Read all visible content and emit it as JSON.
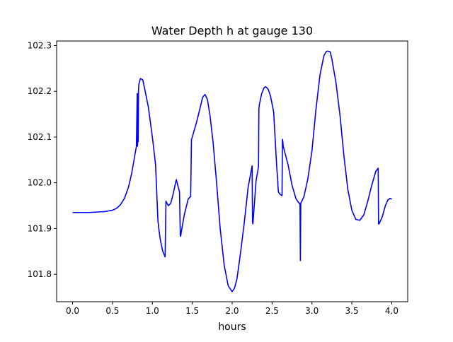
{
  "chart_data": {
    "type": "line",
    "title": "Water Depth h at gauge 130",
    "xlabel": "hours",
    "ylabel": "",
    "xlim": [
      -0.2,
      4.2
    ],
    "ylim": [
      101.74,
      102.31
    ],
    "xticks": [
      0.0,
      0.5,
      1.0,
      1.5,
      2.0,
      2.5,
      3.0,
      3.5,
      4.0
    ],
    "xtick_labels": [
      "0.0",
      "0.5",
      "1.0",
      "1.5",
      "2.0",
      "2.5",
      "3.0",
      "3.5",
      "4.0"
    ],
    "yticks": [
      101.8,
      101.9,
      102.0,
      102.1,
      102.2,
      102.3
    ],
    "ytick_labels": [
      "101.8",
      "101.9",
      "102.0",
      "102.1",
      "102.2",
      "102.3"
    ],
    "grid": false,
    "series": [
      {
        "color": "#0000ff",
        "x": [
          0.0,
          0.1,
          0.2,
          0.3,
          0.4,
          0.5,
          0.55,
          0.6,
          0.65,
          0.7,
          0.74,
          0.78,
          0.8,
          0.81,
          0.813,
          0.815,
          0.82,
          0.823,
          0.826,
          0.83,
          0.85,
          0.88,
          0.91,
          0.95,
          1.0,
          1.04,
          1.07,
          1.075,
          1.08,
          1.1,
          1.13,
          1.16,
          1.17,
          1.175,
          1.2,
          1.23,
          1.26,
          1.3,
          1.34,
          1.35,
          1.355,
          1.36,
          1.4,
          1.45,
          1.48,
          1.49,
          1.495,
          1.5,
          1.55,
          1.6,
          1.63,
          1.66,
          1.69,
          1.72,
          1.76,
          1.8,
          1.85,
          1.9,
          1.95,
          2.0,
          2.03,
          2.06,
          2.1,
          2.15,
          2.2,
          2.25,
          2.255,
          2.26,
          2.3,
          2.33,
          2.335,
          2.34,
          2.37,
          2.4,
          2.42,
          2.45,
          2.48,
          2.52,
          2.56,
          2.57,
          2.575,
          2.58,
          2.6,
          2.625,
          2.63,
          2.635,
          2.64,
          2.7,
          2.75,
          2.8,
          2.84,
          2.85,
          2.855,
          2.86,
          2.9,
          2.95,
          3.0,
          3.05,
          3.1,
          3.15,
          3.18,
          3.2,
          3.23,
          3.25,
          3.3,
          3.35,
          3.4,
          3.45,
          3.5,
          3.55,
          3.6,
          3.65,
          3.7,
          3.75,
          3.8,
          3.83,
          3.835,
          3.84,
          3.88,
          3.92,
          3.95,
          3.98,
          4.0
        ],
        "y": [
          101.935,
          101.935,
          101.935,
          101.936,
          101.937,
          101.94,
          101.944,
          101.952,
          101.966,
          101.99,
          102.02,
          102.06,
          102.08,
          102.195,
          102.08,
          102.085,
          102.195,
          102.09,
          102.2,
          102.215,
          102.228,
          102.225,
          102.2,
          102.165,
          102.1,
          102.04,
          101.916,
          101.91,
          101.9,
          101.875,
          101.85,
          101.838,
          101.96,
          101.958,
          101.95,
          101.955,
          101.975,
          102.007,
          101.98,
          101.885,
          101.883,
          101.89,
          101.93,
          101.965,
          101.97,
          102.095,
          102.097,
          102.1,
          102.13,
          102.165,
          102.187,
          102.193,
          102.182,
          102.15,
          102.09,
          102.01,
          101.9,
          101.82,
          101.775,
          101.762,
          101.77,
          101.79,
          101.84,
          101.91,
          101.99,
          102.037,
          101.915,
          101.91,
          102.005,
          102.035,
          102.16,
          102.17,
          102.195,
          102.208,
          102.21,
          102.205,
          102.19,
          102.155,
          102.03,
          102.01,
          101.99,
          101.98,
          101.975,
          101.972,
          102.095,
          102.09,
          102.08,
          102.04,
          101.995,
          101.965,
          101.955,
          101.955,
          101.83,
          101.955,
          101.97,
          102.01,
          102.07,
          102.16,
          102.235,
          102.278,
          102.287,
          102.288,
          102.286,
          102.27,
          102.22,
          102.15,
          102.06,
          101.985,
          101.94,
          101.92,
          101.918,
          101.93,
          101.96,
          101.995,
          102.025,
          102.032,
          101.91,
          101.91,
          101.925,
          101.95,
          101.962,
          101.966,
          101.964
        ]
      }
    ]
  }
}
